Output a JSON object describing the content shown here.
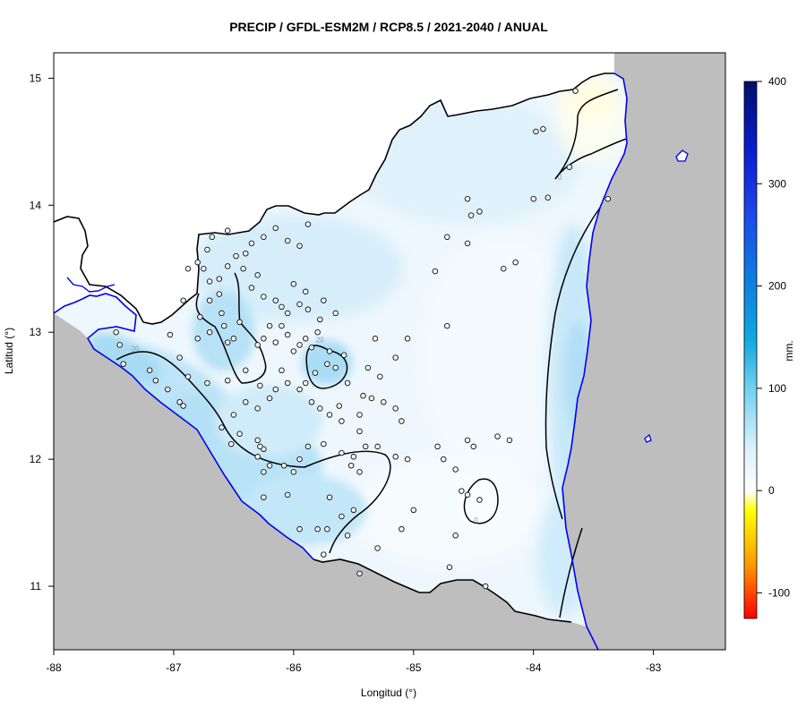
{
  "title": "PRECIP / GFDL-ESM2M / RCP8.5 / 2021-2040 / ANUAL",
  "chart_data": {
    "type": "heatmap",
    "title": "PRECIP / GFDL-ESM2M / RCP8.5 / 2021-2040 / ANUAL",
    "xlabel": "Longitud (°)",
    "ylabel": "Latitud (°)",
    "xlim": [
      -88,
      -82.4
    ],
    "ylim": [
      10.5,
      15.2
    ],
    "x_ticks": [
      -88,
      -87,
      -86,
      -85,
      -84,
      -83
    ],
    "x_tick_labels": [
      "-88",
      "-87",
      "-86",
      "-85",
      "-84",
      "-83"
    ],
    "y_ticks": [
      11,
      12,
      13,
      14,
      15
    ],
    "y_tick_labels": [
      "11",
      "12",
      "13",
      "14",
      "15"
    ],
    "colorbar": {
      "label": "mm.",
      "range": [
        -125,
        400
      ],
      "ticks": [
        -100,
        0,
        100,
        200,
        300,
        400
      ],
      "tick_labels": [
        "-100",
        "0",
        "100",
        "200",
        "300",
        "400"
      ]
    },
    "contour_labels": [
      {
        "text": "0",
        "lon": -83.78,
        "lat": 14.2
      },
      {
        "text": "20",
        "lon": -87.32,
        "lat": 12.85
      },
      {
        "text": "20",
        "lon": -85.78,
        "lat": 12.92
      },
      {
        "text": "0",
        "lon": -84.48,
        "lat": 11.5
      }
    ],
    "stations": [
      [
        -87.48,
        13.0
      ],
      [
        -87.45,
        12.9
      ],
      [
        -87.42,
        12.75
      ],
      [
        -87.2,
        12.7
      ],
      [
        -87.15,
        12.62
      ],
      [
        -87.05,
        12.55
      ],
      [
        -86.92,
        12.42
      ],
      [
        -86.95,
        12.45
      ],
      [
        -86.88,
        12.65
      ],
      [
        -86.72,
        12.6
      ],
      [
        -86.8,
        12.95
      ],
      [
        -86.7,
        13.0
      ],
      [
        -86.95,
        12.8
      ],
      [
        -87.03,
        12.98
      ],
      [
        -86.55,
        12.92
      ],
      [
        -86.5,
        12.95
      ],
      [
        -86.58,
        13.05
      ],
      [
        -86.6,
        13.15
      ],
      [
        -86.62,
        13.3
      ],
      [
        -86.7,
        13.4
      ],
      [
        -86.62,
        13.42
      ],
      [
        -86.55,
        13.52
      ],
      [
        -86.48,
        13.6
      ],
      [
        -86.42,
        13.5
      ],
      [
        -86.3,
        13.45
      ],
      [
        -86.35,
        13.35
      ],
      [
        -86.25,
        13.28
      ],
      [
        -86.15,
        13.25
      ],
      [
        -86.1,
        13.2
      ],
      [
        -86.05,
        13.15
      ],
      [
        -86.2,
        13.05
      ],
      [
        -86.25,
        12.95
      ],
      [
        -86.3,
        12.9
      ],
      [
        -86.15,
        12.92
      ],
      [
        -86.05,
        12.98
      ],
      [
        -86.0,
        12.85
      ],
      [
        -85.95,
        12.9
      ],
      [
        -85.9,
        12.95
      ],
      [
        -85.85,
        12.88
      ],
      [
        -85.8,
        13.0
      ],
      [
        -85.7,
        12.85
      ],
      [
        -85.72,
        12.75
      ],
      [
        -85.82,
        12.68
      ],
      [
        -85.9,
        12.6
      ],
      [
        -85.95,
        12.55
      ],
      [
        -86.05,
        12.6
      ],
      [
        -86.15,
        12.55
      ],
      [
        -86.2,
        12.48
      ],
      [
        -86.3,
        12.4
      ],
      [
        -86.4,
        12.45
      ],
      [
        -86.5,
        12.35
      ],
      [
        -86.6,
        12.25
      ],
      [
        -86.45,
        12.2
      ],
      [
        -86.52,
        12.12
      ],
      [
        -86.3,
        12.15
      ],
      [
        -86.25,
        12.08
      ],
      [
        -86.3,
        12.02
      ],
      [
        -86.2,
        11.95
      ],
      [
        -86.25,
        11.9
      ],
      [
        -86.08,
        11.95
      ],
      [
        -86.0,
        11.9
      ],
      [
        -85.95,
        12.0
      ],
      [
        -85.88,
        12.1
      ],
      [
        -85.75,
        12.12
      ],
      [
        -85.6,
        12.05
      ],
      [
        -85.5,
        12.02
      ],
      [
        -85.52,
        11.95
      ],
      [
        -85.45,
        11.9
      ],
      [
        -85.7,
        11.7
      ],
      [
        -85.6,
        11.55
      ],
      [
        -85.5,
        11.6
      ],
      [
        -85.55,
        11.4
      ],
      [
        -85.72,
        11.45
      ],
      [
        -85.8,
        11.45
      ],
      [
        -85.95,
        11.45
      ],
      [
        -86.05,
        11.72
      ],
      [
        -86.25,
        11.7
      ],
      [
        -86.28,
        12.1
      ],
      [
        -85.4,
        12.1
      ],
      [
        -85.3,
        12.1
      ],
      [
        -85.15,
        12.02
      ],
      [
        -85.05,
        12.0
      ],
      [
        -84.8,
        12.1
      ],
      [
        -84.75,
        12.0
      ],
      [
        -84.55,
        12.15
      ],
      [
        -84.5,
        12.1
      ],
      [
        -84.3,
        12.18
      ],
      [
        -84.2,
        12.15
      ],
      [
        -84.6,
        11.75
      ],
      [
        -84.55,
        11.72
      ],
      [
        -84.45,
        11.68
      ],
      [
        -84.65,
        11.92
      ],
      [
        -84.65,
        11.4
      ],
      [
        -85.0,
        11.6
      ],
      [
        -85.1,
        11.45
      ],
      [
        -85.3,
        11.3
      ],
      [
        -85.45,
        11.1
      ],
      [
        -85.75,
        11.25
      ],
      [
        -84.7,
        11.15
      ],
      [
        -84.4,
        11.0
      ],
      [
        -85.1,
        12.3
      ],
      [
        -85.15,
        12.4
      ],
      [
        -85.25,
        12.45
      ],
      [
        -85.35,
        12.48
      ],
      [
        -85.42,
        12.5
      ],
      [
        -85.45,
        12.35
      ],
      [
        -85.55,
        12.6
      ],
      [
        -85.62,
        12.42
      ],
      [
        -85.6,
        12.3
      ],
      [
        -85.45,
        12.22
      ],
      [
        -85.28,
        12.65
      ],
      [
        -85.38,
        12.72
      ],
      [
        -85.32,
        12.95
      ],
      [
        -85.15,
        12.8
      ],
      [
        -85.05,
        12.95
      ],
      [
        -84.82,
        13.48
      ],
      [
        -84.72,
        13.75
      ],
      [
        -84.55,
        13.7
      ],
      [
        -84.45,
        13.95
      ],
      [
        -84.55,
        14.05
      ],
      [
        -84.52,
        13.92
      ],
      [
        -84.72,
        13.05
      ],
      [
        -84.25,
        13.5
      ],
      [
        -84.15,
        13.55
      ],
      [
        -84.0,
        14.05
      ],
      [
        -83.88,
        14.06
      ],
      [
        -83.98,
        14.58
      ],
      [
        -83.92,
        14.6
      ],
      [
        -83.7,
        14.3
      ],
      [
        -83.38,
        14.05
      ],
      [
        -83.65,
        14.9
      ],
      [
        -86.8,
        13.55
      ],
      [
        -86.75,
        13.5
      ],
      [
        -86.88,
        13.5
      ],
      [
        -86.7,
        13.25
      ],
      [
        -86.78,
        13.12
      ],
      [
        -86.92,
        13.25
      ],
      [
        -86.4,
        13.62
      ],
      [
        -86.35,
        13.7
      ],
      [
        -86.25,
        13.75
      ],
      [
        -86.15,
        13.82
      ],
      [
        -86.05,
        13.72
      ],
      [
        -85.95,
        13.68
      ],
      [
        -85.88,
        13.85
      ],
      [
        -86.0,
        13.38
      ],
      [
        -85.9,
        13.32
      ],
      [
        -85.95,
        13.22
      ],
      [
        -85.88,
        13.18
      ],
      [
        -85.75,
        13.25
      ],
      [
        -85.65,
        13.15
      ],
      [
        -85.78,
        13.1
      ],
      [
        -86.45,
        13.08
      ],
      [
        -86.1,
        13.05
      ],
      [
        -85.65,
        12.72
      ],
      [
        -85.58,
        12.82
      ],
      [
        -86.28,
        12.58
      ],
      [
        -86.1,
        12.7
      ],
      [
        -86.4,
        12.7
      ],
      [
        -86.55,
        12.62
      ],
      [
        -85.85,
        12.45
      ],
      [
        -85.78,
        12.4
      ],
      [
        -85.7,
        12.35
      ],
      [
        -86.72,
        13.65
      ],
      [
        -86.55,
        13.8
      ],
      [
        -86.68,
        13.75
      ]
    ]
  }
}
